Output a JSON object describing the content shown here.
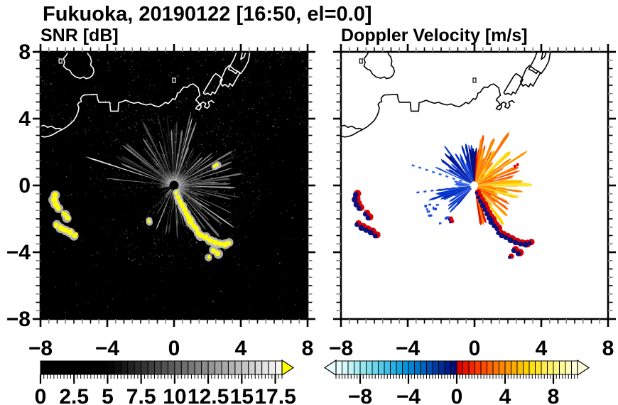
{
  "title": "Fukuoka, 20190122 [16:50, el=0.0]",
  "panels": {
    "snr": {
      "subtitle": "SNR [dB]"
    },
    "vel": {
      "subtitle": "Doppler Velocity [m/s]"
    }
  },
  "axes": {
    "x_range": [
      -8,
      8
    ],
    "y_range": [
      -8,
      8
    ],
    "major_tick_values": [
      -8,
      -4,
      0,
      4,
      8
    ],
    "x_tick_labels": [
      "−8",
      "−4",
      "0",
      "4",
      "8"
    ],
    "y_tick_labels": [
      "8",
      "4",
      "0",
      "−4",
      "−8"
    ],
    "minor_tick_step": 0.5
  },
  "colorbars": {
    "snr": {
      "range": [
        0,
        18
      ],
      "cell_step": 0.5,
      "tick_values": [
        0,
        2.5,
        5,
        7.5,
        10,
        12.5,
        15,
        17.5
      ],
      "tick_labels": [
        "0",
        "2.5",
        "5",
        "7.5",
        "10",
        "12.5",
        "15",
        "17.5"
      ],
      "overflow_color": "#ffff00",
      "cells": [
        "#000000",
        "#000000",
        "#000000",
        "#000000",
        "#000000",
        "#000000",
        "#000000",
        "#000000",
        "#000000",
        "#000000",
        "#050505",
        "#0e0e0e",
        "#181818",
        "#222222",
        "#2b2b2b",
        "#353535",
        "#3e3e3e",
        "#484848",
        "#525252",
        "#5b5b5b",
        "#656565",
        "#6f6f6f",
        "#787878",
        "#828282",
        "#8b8b8b",
        "#959595",
        "#9f9f9f",
        "#a8a8a8",
        "#b2b2b2",
        "#bbbbbb",
        "#c5c5c5",
        "#cfcfcf",
        "#d8d8d8",
        "#e2e2e2",
        "#ececec",
        "#f5f5f5"
      ]
    },
    "vel": {
      "range": [
        -10,
        10
      ],
      "cell_step": 0.5,
      "tick_values": [
        -8,
        -4,
        0,
        4,
        8
      ],
      "tick_labels": [
        "−8",
        "−4",
        "0",
        "4",
        "8"
      ],
      "cells": [
        "#e8fbfb",
        "#d4f6f8",
        "#bff1f5",
        "#aaecf3",
        "#95e6f0",
        "#80deee",
        "#6bd5ec",
        "#55cbea",
        "#40bfe8",
        "#2ab2e5",
        "#15a5e2",
        "#0096dd",
        "#0085d3",
        "#0074c8",
        "#0062bd",
        "#004fb0",
        "#003da3",
        "#002c96",
        "#001c89",
        "#000e7d",
        "#dc0000",
        "#e71300",
        "#f22600",
        "#fc3900",
        "#ff4d00",
        "#ff6000",
        "#ff7300",
        "#ff8600",
        "#ff9900",
        "#ffac00",
        "#ffbf00",
        "#ffd200",
        "#ffdd14",
        "#ffe52e",
        "#ffec49",
        "#fff263",
        "#fff77e",
        "#fffa98",
        "#fffcb8",
        "#fffdd8"
      ]
    }
  },
  "chart_data": [
    {
      "type": "heatmap",
      "subtype": "radar_ppi",
      "title": "SNR [dB]",
      "x_range": [
        -8,
        8
      ],
      "y_range": [
        -8,
        8
      ],
      "x_ticks": [
        -8,
        -4,
        0,
        4,
        8
      ],
      "y_ticks": [
        -8,
        -4,
        0,
        4,
        8
      ],
      "radar_center": [
        0,
        0
      ],
      "background": "#000000",
      "coast_color": "#ffffff",
      "colorbar": {
        "range": [
          0,
          18
        ],
        "step": 0.5,
        "tick_values": [
          0,
          2.5,
          5,
          7.5,
          10,
          12.5,
          15,
          17.5
        ],
        "scheme": "black-to-white grayscale",
        "over_color": "#ffff00"
      },
      "notes": "starburst of clutter rays around radar at origin; yellow blobs = SNR above 18 dB along SE chain and west cluster"
    },
    {
      "type": "heatmap",
      "subtype": "radar_ppi",
      "title": "Doppler Velocity [m/s]",
      "x_range": [
        -8,
        8
      ],
      "y_range": [
        -8,
        8
      ],
      "x_ticks": [
        -8,
        -4,
        0,
        4,
        8
      ],
      "y_ticks": [
        -8,
        -4,
        0,
        4,
        8
      ],
      "radar_center": [
        0,
        0
      ],
      "background": "#ffffff",
      "coast_color": "#000000",
      "colorbar": {
        "range": [
          -10,
          10
        ],
        "step": 0.5,
        "tick_values": [
          -8,
          -4,
          0,
          4,
          8
        ],
        "scheme": "cyan-blue-navy / red-orange-yellow diverging"
      },
      "notes": "blue fan north and southwest of radar (toward), orange-yellow fan east (away), navy/red echo blobs"
    }
  ],
  "map_features": {
    "coast_main": [
      [
        -8,
        2.95
      ],
      [
        -7.75,
        2.9
      ],
      [
        -7.5,
        2.95
      ],
      [
        -7.25,
        3.05
      ],
      [
        -7.0,
        3.2
      ],
      [
        -6.7,
        3.35
      ],
      [
        -6.45,
        3.5
      ],
      [
        -6.2,
        3.7
      ],
      [
        -6.0,
        3.9
      ],
      [
        -5.85,
        4.15
      ],
      [
        -5.75,
        4.4
      ],
      [
        -5.7,
        4.65
      ],
      [
        -5.78,
        4.85
      ],
      [
        -5.68,
        4.98
      ],
      [
        -5.55,
        5.02
      ],
      [
        -5.6,
        5.2
      ],
      [
        -5.5,
        5.35
      ],
      [
        -5.38,
        5.42
      ],
      [
        -4.62,
        5.45
      ],
      [
        -4.57,
        5.15
      ],
      [
        -4.5,
        4.98
      ],
      [
        -3.85,
        4.98
      ],
      [
        -3.8,
        4.45
      ],
      [
        -3.35,
        4.45
      ],
      [
        -3.32,
        4.95
      ],
      [
        -3.1,
        5.02
      ],
      [
        -2.9,
        5.1
      ],
      [
        -2.65,
        5.0
      ],
      [
        -2.4,
        4.92
      ],
      [
        -2.15,
        4.98
      ],
      [
        -1.9,
        4.88
      ],
      [
        -1.65,
        4.82
      ],
      [
        -1.4,
        4.88
      ],
      [
        -1.15,
        4.76
      ],
      [
        -0.9,
        4.72
      ],
      [
        -0.68,
        4.85
      ],
      [
        -0.52,
        4.98
      ],
      [
        -0.35,
        4.9
      ],
      [
        -0.2,
        5.05
      ],
      [
        -0.08,
        5.2
      ],
      [
        0.05,
        5.15
      ],
      [
        0.15,
        5.32
      ],
      [
        0.2,
        5.52
      ],
      [
        0.35,
        5.58
      ],
      [
        0.45,
        5.75
      ],
      [
        0.6,
        5.9
      ],
      [
        0.78,
        5.86
      ],
      [
        0.95,
        6.02
      ],
      [
        1.15,
        6.08
      ],
      [
        1.32,
        5.95
      ],
      [
        1.45,
        5.85
      ],
      [
        1.5,
        5.6
      ],
      [
        1.55,
        5.4
      ],
      [
        1.42,
        5.28
      ],
      [
        1.3,
        5.12
      ],
      [
        1.45,
        4.98
      ],
      [
        1.55,
        4.82
      ],
      [
        1.4,
        4.75
      ],
      [
        1.3,
        4.6
      ],
      [
        1.5,
        4.52
      ],
      [
        1.62,
        4.68
      ],
      [
        1.6,
        4.9
      ],
      [
        1.75,
        5.0
      ],
      [
        1.9,
        4.9
      ],
      [
        1.82,
        4.7
      ],
      [
        2.0,
        4.62
      ],
      [
        2.12,
        4.78
      ],
      [
        2.05,
        5.0
      ],
      [
        2.25,
        5.08
      ],
      [
        2.4,
        4.95
      ]
    ],
    "coast_inlet": [
      [
        -8,
        3.55
      ],
      [
        -7.78,
        3.6
      ],
      [
        -7.58,
        3.48
      ],
      [
        -7.35,
        3.55
      ],
      [
        -7.1,
        3.4
      ],
      [
        -6.9,
        3.42
      ],
      [
        -6.72,
        3.35
      ]
    ],
    "island": [
      [
        -6.35,
        8.0
      ],
      [
        -6.45,
        7.8
      ],
      [
        -6.62,
        7.6
      ],
      [
        -6.55,
        7.38
      ],
      [
        -6.62,
        7.15
      ],
      [
        -6.45,
        6.98
      ],
      [
        -6.25,
        6.9
      ],
      [
        -6.12,
        6.68
      ],
      [
        -5.9,
        6.5
      ],
      [
        -5.62,
        6.42
      ],
      [
        -5.4,
        6.5
      ],
      [
        -5.28,
        6.4
      ],
      [
        -5.05,
        6.45
      ],
      [
        -4.88,
        6.6
      ],
      [
        -4.8,
        6.82
      ],
      [
        -4.85,
        7.05
      ],
      [
        -5.0,
        7.2
      ],
      [
        -4.95,
        7.45
      ],
      [
        -5.02,
        7.7
      ],
      [
        -5.15,
        7.85
      ],
      [
        -5.2,
        8.0
      ]
    ],
    "pier1": [
      [
        1.75,
        5.55
      ],
      [
        2.35,
        6.55
      ],
      [
        2.5,
        6.7
      ],
      [
        2.72,
        6.55
      ],
      [
        2.9,
        6.35
      ],
      [
        2.45,
        5.5
      ],
      [
        2.3,
        5.6
      ],
      [
        2.2,
        5.42
      ],
      [
        2.0,
        5.52
      ],
      [
        1.85,
        5.45
      ],
      [
        1.75,
        5.55
      ]
    ],
    "pier2": [
      [
        2.75,
        6.2
      ],
      [
        3.1,
        7.0
      ],
      [
        3.3,
        7.19
      ],
      [
        3.6,
        6.95
      ],
      [
        3.95,
        6.75
      ],
      [
        3.5,
        5.95
      ],
      [
        3.35,
        6.1
      ],
      [
        3.25,
        5.9
      ],
      [
        3.05,
        6.05
      ],
      [
        2.9,
        5.95
      ],
      [
        2.75,
        6.2
      ]
    ],
    "pier3": [
      [
        3.25,
        6.95
      ],
      [
        3.6,
        7.6
      ],
      [
        3.75,
        8.0
      ],
      [
        4.1,
        8.0
      ],
      [
        4.0,
        7.55
      ],
      [
        4.2,
        7.7
      ],
      [
        4.3,
        8.0
      ],
      [
        4.55,
        8.0
      ],
      [
        4.45,
        7.45
      ],
      [
        4.25,
        7.05
      ],
      [
        4.0,
        6.7
      ],
      [
        3.8,
        6.85
      ],
      [
        3.7,
        6.7
      ],
      [
        3.5,
        6.85
      ],
      [
        3.25,
        6.95
      ]
    ],
    "dots": [
      [
        -6.8,
        7.45
      ],
      [
        0.0,
        6.3
      ]
    ]
  },
  "echoes": {
    "chain_se": [
      [
        0.12,
        -0.45,
        0.1
      ],
      [
        0.22,
        -0.7,
        0.12
      ],
      [
        0.35,
        -0.95,
        0.14
      ],
      [
        0.5,
        -1.2,
        0.16
      ],
      [
        0.62,
        -1.45,
        0.14
      ],
      [
        0.75,
        -1.7,
        0.15
      ],
      [
        0.88,
        -1.95,
        0.16
      ],
      [
        1.0,
        -2.2,
        0.17
      ],
      [
        1.05,
        -2.05,
        0.1
      ],
      [
        1.18,
        -2.42,
        0.15
      ],
      [
        1.35,
        -2.6,
        0.14
      ],
      [
        1.42,
        -2.85,
        0.13
      ],
      [
        1.62,
        -3.0,
        0.16
      ],
      [
        1.88,
        -3.12,
        0.15
      ],
      [
        2.15,
        -3.28,
        0.17
      ],
      [
        2.45,
        -3.42,
        0.16
      ],
      [
        2.75,
        -3.5,
        0.15
      ],
      [
        3.05,
        -3.55,
        0.17
      ],
      [
        3.3,
        -3.45,
        0.13
      ],
      [
        2.35,
        -3.9,
        0.15
      ],
      [
        2.62,
        -4.08,
        0.16
      ],
      [
        2.1,
        -4.3,
        0.1
      ]
    ],
    "west_cluster": [
      [
        -7.12,
        -0.55,
        0.16
      ],
      [
        -7.18,
        -0.85,
        0.18
      ],
      [
        -7.08,
        -1.15,
        0.17
      ],
      [
        -6.92,
        -1.38,
        0.15
      ],
      [
        -6.55,
        -1.72,
        0.14
      ],
      [
        -6.38,
        -1.95,
        0.15
      ],
      [
        -7.05,
        -2.35,
        0.14
      ],
      [
        -6.78,
        -2.55,
        0.17
      ],
      [
        -6.5,
        -2.68,
        0.16
      ],
      [
        -6.22,
        -2.82,
        0.17
      ],
      [
        -5.95,
        -3.02,
        0.15
      ]
    ],
    "ne_dash": [
      [
        2.42,
        1.15,
        0.09
      ],
      [
        2.58,
        1.25,
        0.09
      ]
    ],
    "sw_dash": [
      [
        -1.52,
        -2.05,
        0.07
      ],
      [
        -1.46,
        -2.2,
        0.07
      ]
    ],
    "snr_color": "#ffff00",
    "snr_halo": "#c8c8c8",
    "vel_main": "#0a1280",
    "vel_fringe": "#dc0000"
  },
  "snr_display": {
    "ray_color": "#ffffff",
    "sectors": [
      {
        "t0": -60,
        "t1": 160,
        "n": 72,
        "r0": 0.3,
        "rmin": 1.0,
        "rmax": 4.6,
        "amin": 0.1,
        "amax": 0.62
      },
      {
        "t0": 230,
        "t1": 292,
        "n": 16,
        "r0": 0.3,
        "rmin": 0.8,
        "rmax": 3.2,
        "amin": 0.08,
        "amax": 0.45
      }
    ],
    "special_rays": [
      {
        "theta": 162,
        "r1": 5.6,
        "w": 0.5,
        "alpha": 0.9
      },
      {
        "theta": 174,
        "r1": 4.0,
        "w": 0.4,
        "alpha": 0.6
      },
      {
        "theta": 248,
        "r1": 2.8,
        "w": 0.6,
        "alpha": 0.8
      },
      {
        "theta": -35,
        "r1": 4.4,
        "w": 0.6,
        "alpha": 0.7
      },
      {
        "theta": 75,
        "r1": 4.2,
        "w": 0.5,
        "alpha": 0.8
      }
    ],
    "shadow_wedges": [
      {
        "theta": 243,
        "w": 3.0,
        "r1": 3.4
      },
      {
        "theta": 253,
        "w": 2.5,
        "r1": 3.0
      },
      {
        "theta": 262,
        "w": 2.0,
        "r1": 2.6
      },
      {
        "theta": 200,
        "w": 8.0,
        "r1": 5.0
      },
      {
        "theta": 218,
        "w": 7.0,
        "r1": 4.0
      }
    ],
    "speckle_count": 1500,
    "center_dot": "#000000"
  },
  "vel_display": {
    "fans": [
      {
        "name": "north-blue",
        "t0": 92,
        "t1": 158,
        "n": 28,
        "r0": 0.25,
        "rmin": 0.9,
        "rmax": 2.6,
        "palette": [
          "#0a1a9e",
          "#0026b4",
          "#0d3bd0",
          "#1e4ada",
          "#0033cc",
          "#001489"
        ]
      },
      {
        "name": "north-navy-edge",
        "t0": 86,
        "t1": 100,
        "n": 7,
        "r0": 0.25,
        "rmin": 1.4,
        "rmax": 2.5,
        "palette": [
          "#000e7d",
          "#001489"
        ]
      },
      {
        "name": "north-red-streak",
        "t0": 76,
        "t1": 88,
        "n": 7,
        "r0": 0.25,
        "rmin": 1.4,
        "rmax": 2.5,
        "palette": [
          "#e71300",
          "#f22600",
          "#dc0000"
        ]
      },
      {
        "name": "east-orange",
        "t0": -62,
        "t1": 84,
        "n": 64,
        "r0": 0.22,
        "rmin": 0.9,
        "rmax": 3.1,
        "palette": [
          "#ff8600",
          "#ff7300",
          "#ff9900",
          "#fc3900",
          "#ffac00",
          "#ff6000",
          "#ffd200",
          "#ffe52e",
          "#ff8600",
          "#ff9900",
          "#ffbf00",
          "#ff4d00"
        ]
      },
      {
        "name": "south-orange",
        "t0": -82,
        "t1": -58,
        "n": 10,
        "r0": 0.3,
        "rmin": 0.8,
        "rmax": 2.6,
        "palette": [
          "#ff7300",
          "#e71300",
          "#ff9900",
          "#ff8600"
        ]
      },
      {
        "name": "sw-blue",
        "t0": 188,
        "t1": 232,
        "n": 18,
        "r0": 0.25,
        "rmin": 1.0,
        "rmax": 2.4,
        "palette": [
          "#0d3bd0",
          "#1a49e0",
          "#0033cc",
          "#0028b0",
          "#1e4ada"
        ]
      },
      {
        "name": "west-thin",
        "t0": 168,
        "t1": 186,
        "n": 6,
        "r0": 0.3,
        "rmin": 0.7,
        "rmax": 1.5,
        "palette": [
          "#2a62e8",
          "#1a49e0"
        ]
      }
    ],
    "dashed_rays": [
      {
        "theta": 162,
        "r0": 0.8,
        "r1": 4.2,
        "color": "#2a62e8"
      },
      {
        "theta": 187,
        "r0": 1.2,
        "r1": 3.6,
        "color": "#1a49e0"
      }
    ],
    "sw_scatter": {
      "t0": 195,
      "t1": 228,
      "n": 16,
      "rmin": 2.4,
      "rmax": 3.3,
      "color": "#1a49e0"
    },
    "center_hole": "#ffffff"
  }
}
